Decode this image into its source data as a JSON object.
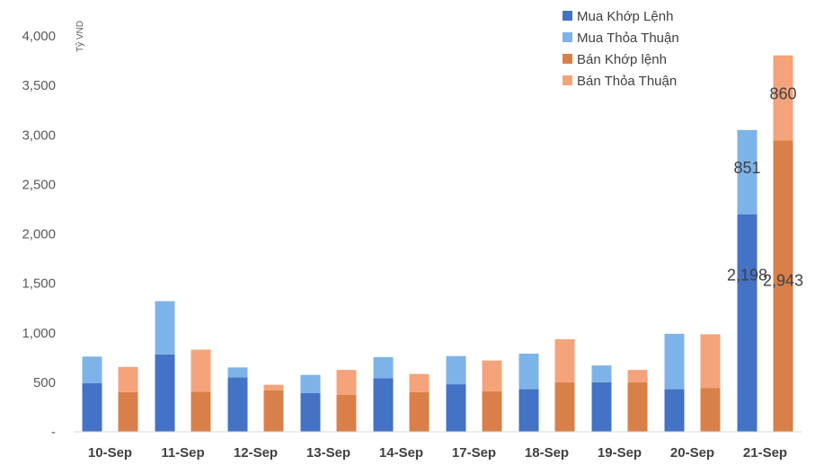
{
  "chart_data": {
    "type": "bar",
    "stacked": true,
    "unit_label": "Tỷ VND",
    "ylim": [
      0,
      4000
    ],
    "y_ticks": [
      0,
      500,
      1000,
      1500,
      2000,
      2500,
      3000,
      3500,
      4000
    ],
    "y_tick_labels": [
      "-",
      "500",
      "1,000",
      "1,500",
      "2,000",
      "2,500",
      "3,000",
      "3,500",
      "4,000"
    ],
    "grid": false,
    "legend_position": "top-right",
    "categories": [
      "10-Sep",
      "11-Sep",
      "12-Sep",
      "13-Sep",
      "14-Sep",
      "17-Sep",
      "18-Sep",
      "19-Sep",
      "20-Sep",
      "21-Sep"
    ],
    "groups": [
      {
        "role": "buy",
        "series": [
          {
            "name": "Mua Khớp Lệnh",
            "color": "#4472C4",
            "values": [
              490,
              780,
              550,
              390,
              540,
              480,
              430,
              500,
              430,
              2198
            ]
          },
          {
            "name": "Mua Thỏa Thuận",
            "color": "#7DB3E8",
            "values": [
              270,
              540,
              100,
              185,
              215,
              285,
              360,
              170,
              560,
              851
            ]
          }
        ]
      },
      {
        "role": "sell",
        "series": [
          {
            "name": "Bán Khớp lệnh",
            "color": "#D9804A",
            "values": [
              400,
              405,
              420,
              375,
              400,
              410,
              500,
              500,
              440,
              2943
            ]
          },
          {
            "name": "Bán Thỏa Thuận",
            "color": "#F4A37A",
            "values": [
              255,
              425,
              55,
              250,
              185,
              310,
              435,
              125,
              545,
              860
            ]
          }
        ]
      }
    ],
    "data_labels": [
      {
        "text": "2,198",
        "series": "Mua Khớp Lệnh",
        "category": "21-Sep"
      },
      {
        "text": "851",
        "series": "Mua Thỏa Thuận",
        "category": "21-Sep"
      },
      {
        "text": "2,943",
        "series": "Bán Khớp lệnh",
        "category": "21-Sep"
      },
      {
        "text": "860",
        "series": "Bán Thỏa Thuận",
        "category": "21-Sep"
      }
    ]
  }
}
